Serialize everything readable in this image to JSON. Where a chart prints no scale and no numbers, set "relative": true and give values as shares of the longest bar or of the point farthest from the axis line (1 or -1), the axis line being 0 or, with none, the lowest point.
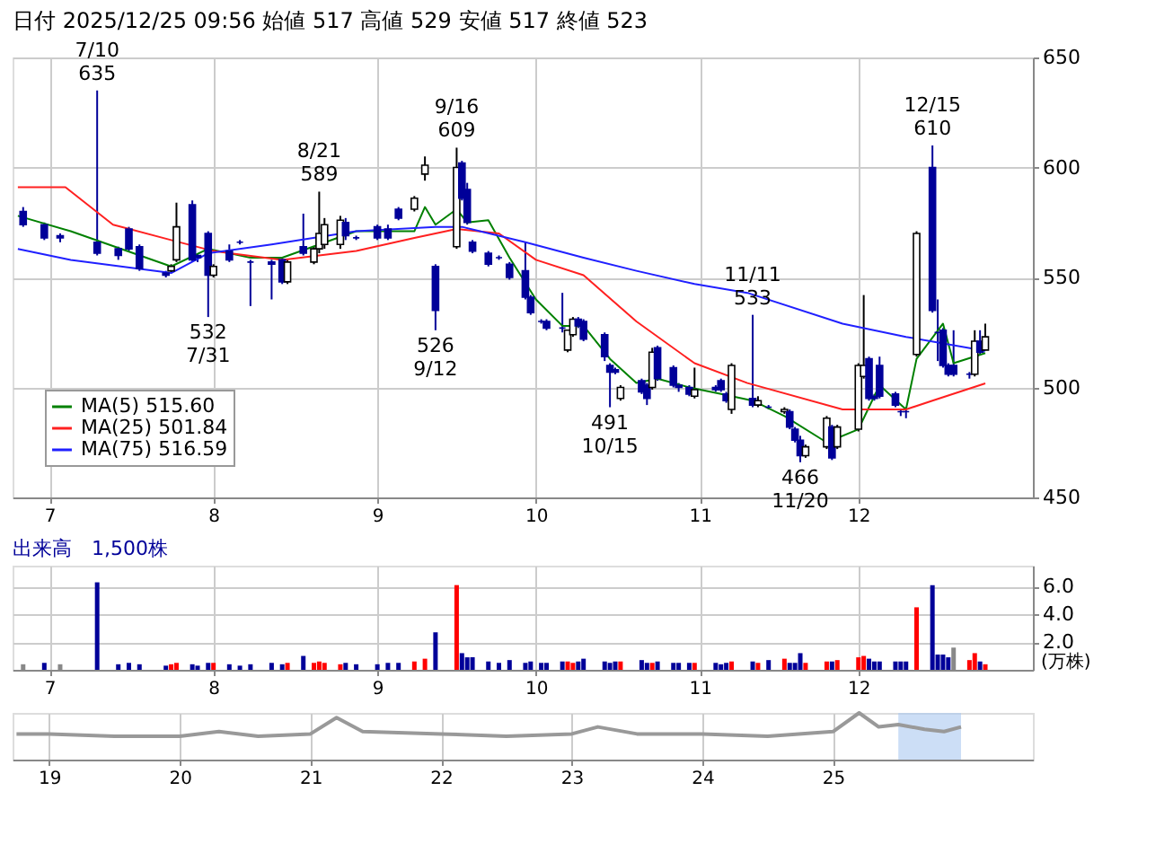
{
  "chart_data": [
    {
      "type": "candlestick",
      "title": "日付 2025/12/25 09:56 始値 517 高値 529 安値 517 終値 523",
      "color": "#000000",
      "x": [
        "2025-06-26",
        "2025-06-30",
        "2025-07-03",
        "2025-07-10",
        "2025-07-14",
        "2025-07-16",
        "2025-07-18",
        "2025-07-23",
        "2025-07-24",
        "2025-07-25",
        "2025-07-28",
        "2025-07-29",
        "2025-07-31",
        "2025-08-01",
        "2025-08-04",
        "2025-08-06",
        "2025-08-08",
        "2025-08-12",
        "2025-08-14",
        "2025-08-15",
        "2025-08-18",
        "2025-08-20",
        "2025-08-21",
        "2025-08-22",
        "2025-08-25",
        "2025-08-26",
        "2025-08-28",
        "2025-09-01",
        "2025-09-03",
        "2025-09-05",
        "2025-09-08",
        "2025-09-10",
        "2025-09-12",
        "2025-09-16",
        "2025-09-17",
        "2025-09-18",
        "2025-09-19",
        "2025-09-22",
        "2025-09-24",
        "2025-09-26",
        "2025-09-29",
        "2025-09-30",
        "2025-10-02",
        "2025-10-03",
        "2025-10-06",
        "2025-10-07",
        "2025-10-08",
        "2025-10-09",
        "2025-10-10",
        "2025-10-14",
        "2025-10-15",
        "2025-10-16",
        "2025-10-17",
        "2025-10-21",
        "2025-10-22",
        "2025-10-23",
        "2025-10-24",
        "2025-10-27",
        "2025-10-28",
        "2025-10-30",
        "2025-10-31",
        "2025-11-04",
        "2025-11-05",
        "2025-11-06",
        "2025-11-07",
        "2025-11-11",
        "2025-11-12",
        "2025-11-14",
        "2025-11-17",
        "2025-11-18",
        "2025-11-19",
        "2025-11-20",
        "2025-11-21",
        "2025-11-25",
        "2025-11-26",
        "2025-11-27",
        "2025-12-01",
        "2025-12-02",
        "2025-12-03",
        "2025-12-04",
        "2025-12-05",
        "2025-12-08",
        "2025-12-09",
        "2025-12-10",
        "2025-12-12",
        "2025-12-15",
        "2025-12-16",
        "2025-12-17",
        "2025-12-18",
        "2025-12-19",
        "2025-12-22",
        "2025-12-23",
        "2025-12-24",
        "2025-12-25"
      ],
      "ohlc": [
        [
          580,
          582,
          573,
          574
        ],
        [
          574,
          575,
          567,
          568
        ],
        [
          569,
          570,
          566,
          568
        ],
        [
          566,
          635,
          560,
          561
        ],
        [
          563,
          564,
          558,
          560
        ],
        [
          572,
          573,
          562,
          563
        ],
        [
          564,
          565,
          553,
          554
        ],
        [
          552,
          553,
          550,
          551
        ],
        [
          553,
          556,
          552,
          555
        ],
        [
          558,
          584,
          557,
          573
        ],
        [
          583,
          585,
          557,
          558
        ],
        [
          560,
          561,
          557,
          559
        ],
        [
          570,
          571,
          532,
          551
        ],
        [
          551,
          556,
          550,
          555
        ],
        [
          562,
          565,
          557,
          558
        ],
        [
          566,
          567,
          565,
          566
        ],
        [
          557,
          558,
          537,
          557
        ],
        [
          557,
          558,
          540,
          556
        ],
        [
          558,
          559,
          547,
          548
        ],
        [
          548,
          558,
          547,
          557
        ],
        [
          564,
          579,
          560,
          561
        ],
        [
          557,
          564,
          556,
          563
        ],
        [
          563,
          589,
          561,
          570
        ],
        [
          565,
          577,
          563,
          574
        ],
        [
          565,
          578,
          563,
          576
        ],
        [
          575,
          577,
          567,
          569
        ],
        [
          568,
          569,
          567,
          568
        ],
        [
          573,
          574,
          567,
          568
        ],
        [
          572,
          574,
          567,
          568
        ],
        [
          581,
          582,
          576,
          577
        ],
        [
          581,
          587,
          580,
          586
        ],
        [
          597,
          605,
          594,
          601
        ],
        [
          555,
          556,
          526,
          535
        ],
        [
          564,
          609,
          563,
          600
        ],
        [
          602,
          603,
          585,
          586
        ],
        [
          590,
          593,
          574,
          575
        ],
        [
          566,
          567,
          561,
          562
        ],
        [
          561,
          562,
          555,
          556
        ],
        [
          559,
          560,
          558,
          559
        ],
        [
          556,
          557,
          549,
          550
        ],
        [
          553,
          566,
          540,
          541
        ],
        [
          541,
          542,
          533,
          534
        ],
        [
          530,
          531,
          529,
          530
        ],
        [
          530,
          531,
          526,
          527
        ],
        [
          527,
          543,
          525,
          527
        ],
        [
          517,
          526,
          516,
          526
        ],
        [
          524,
          532,
          523,
          531
        ],
        [
          531,
          532,
          527,
          528
        ],
        [
          530,
          531,
          521,
          522
        ],
        [
          524,
          525,
          512,
          514
        ],
        [
          510,
          511,
          491,
          507
        ],
        [
          508,
          509,
          506,
          507
        ],
        [
          495,
          501,
          494,
          500
        ],
        [
          503,
          504,
          497,
          498
        ],
        [
          501,
          502,
          492,
          495
        ],
        [
          500,
          518,
          499,
          516
        ],
        [
          518,
          519,
          503,
          504
        ],
        [
          509,
          510,
          500,
          501
        ],
        [
          501,
          502,
          498,
          500
        ],
        [
          500,
          501,
          496,
          497
        ],
        [
          496,
          509,
          495,
          499
        ],
        [
          500,
          501,
          498,
          499
        ],
        [
          503,
          504,
          498,
          499
        ],
        [
          497,
          498,
          493,
          494
        ],
        [
          490,
          511,
          488,
          510
        ],
        [
          495,
          533,
          491,
          492
        ],
        [
          492,
          496,
          491,
          494
        ],
        [
          491,
          492,
          490,
          491
        ],
        [
          489,
          491,
          488,
          490
        ],
        [
          489,
          490,
          481,
          482
        ],
        [
          481,
          482,
          475,
          476
        ],
        [
          476,
          478,
          466,
          469
        ],
        [
          469,
          474,
          468,
          473
        ],
        [
          473,
          487,
          472,
          486
        ],
        [
          482,
          483,
          467,
          468
        ],
        [
          473,
          483,
          472,
          482
        ],
        [
          481,
          511,
          480,
          510
        ],
        [
          505,
          542,
          504,
          510
        ],
        [
          513,
          514,
          494,
          495
        ],
        [
          496,
          497,
          494,
          495
        ],
        [
          510,
          514,
          495,
          496
        ],
        [
          497,
          498,
          491,
          492
        ],
        [
          489,
          490,
          487,
          489
        ],
        [
          489,
          491,
          486,
          489
        ],
        [
          515,
          571,
          514,
          570
        ],
        [
          600,
          610,
          534,
          535
        ],
        [
          525,
          540,
          512,
          525
        ],
        [
          526,
          527,
          509,
          510
        ],
        [
          510,
          511,
          505,
          506
        ],
        [
          510,
          526,
          505,
          506
        ],
        [
          506,
          507,
          504,
          506
        ],
        [
          506,
          526,
          505,
          521
        ],
        [
          521,
          526,
          515,
          516
        ],
        [
          517,
          529,
          517,
          523
        ]
      ],
      "colors": [
        "#000099",
        "#000099",
        "#000099",
        "#000099",
        "#000099",
        "#000099",
        "#000099",
        "#000099",
        "#ffffff",
        "#ffffff",
        "#000099",
        "#000099",
        "#000099",
        "#ffffff",
        "#000099",
        "#000099",
        "#000099",
        "#000099",
        "#000099",
        "#ffffff",
        "#000099",
        "#ffffff",
        "#ffffff",
        "#ffffff",
        "#ffffff",
        "#000099",
        "#000099",
        "#000099",
        "#000099",
        "#000099",
        "#ffffff",
        "#ffffff",
        "#000099",
        "#ffffff",
        "#000099",
        "#000099",
        "#000099",
        "#000099",
        "#000099",
        "#000099",
        "#000099",
        "#000099",
        "#000099",
        "#000099",
        "#000099",
        "#ffffff",
        "#ffffff",
        "#000099",
        "#000099",
        "#000099",
        "#000099",
        "#000099",
        "#ffffff",
        "#000099",
        "#000099",
        "#ffffff",
        "#000099",
        "#000099",
        "#000099",
        "#000099",
        "#ffffff",
        "#000099",
        "#000099",
        "#000099",
        "#ffffff",
        "#000099",
        "#ffffff",
        "#000099",
        "#ffffff",
        "#000099",
        "#000099",
        "#000099",
        "#ffffff",
        "#ffffff",
        "#000099",
        "#ffffff",
        "#ffffff",
        "#ffffff",
        "#000099",
        "#000099",
        "#000099",
        "#000099",
        "#000099",
        "#000099",
        "#ffffff",
        "#000099",
        "#000099",
        "#000099",
        "#000099",
        "#000099",
        "#000099",
        "#ffffff",
        "#000099",
        "#ffffff"
      ],
      "series": [
        {
          "name": "MA(5) 515.60",
          "type": "line",
          "color": "#008000",
          "x": [
            "2025-06-25",
            "2025-07-05",
            "2025-07-24",
            "2025-07-31",
            "2025-08-08",
            "2025-08-14",
            "2025-08-21",
            "2025-08-28",
            "2025-09-01",
            "2025-09-08",
            "2025-09-10",
            "2025-09-12",
            "2025-09-16",
            "2025-09-18",
            "2025-09-22",
            "2025-09-26",
            "2025-10-01",
            "2025-10-06",
            "2025-10-10",
            "2025-10-15",
            "2025-10-20",
            "2025-10-24",
            "2025-10-30",
            "2025-11-05",
            "2025-11-11",
            "2025-11-17",
            "2025-11-25",
            "2025-12-01",
            "2025-12-05",
            "2025-12-10",
            "2025-12-12",
            "2025-12-17",
            "2025-12-19",
            "2025-12-25"
          ],
          "values": [
            578,
            571,
            555,
            563,
            559,
            559,
            565,
            571,
            571,
            571,
            582,
            574,
            581,
            575,
            576,
            559,
            540,
            528,
            528,
            513,
            502,
            504,
            500,
            497,
            494,
            487,
            475,
            481,
            501,
            490,
            513,
            529,
            511,
            515.6
          ]
        },
        {
          "name": "MA(25) 501.84",
          "type": "line",
          "color": "#ff2020",
          "x": [
            "2025-06-25",
            "2025-07-04",
            "2025-07-13",
            "2025-07-24",
            "2025-08-01",
            "2025-08-14",
            "2025-08-28",
            "2025-09-08",
            "2025-09-16",
            "2025-09-24",
            "2025-10-01",
            "2025-10-10",
            "2025-10-20",
            "2025-10-31",
            "2025-11-10",
            "2025-11-28",
            "2025-12-10",
            "2025-12-15",
            "2025-12-25"
          ],
          "values": [
            591,
            591,
            574,
            567,
            562,
            558,
            562,
            568,
            572,
            570,
            558,
            551,
            530,
            511,
            502,
            490,
            490,
            494,
            501.84
          ]
        },
        {
          "name": "MA(75) 516.59",
          "type": "line",
          "color": "#2020ff",
          "x": [
            "2025-06-25",
            "2025-07-05",
            "2025-07-24",
            "2025-07-31",
            "2025-08-12",
            "2025-08-28",
            "2025-09-12",
            "2025-09-17",
            "2025-09-29",
            "2025-10-10",
            "2025-10-20",
            "2025-10-31",
            "2025-11-10",
            "2025-11-28",
            "2025-12-10",
            "2025-12-25"
          ],
          "values": [
            563,
            558,
            552,
            561,
            565,
            571,
            573,
            573,
            566,
            559,
            553,
            547,
            543,
            529,
            523,
            516.59
          ]
        }
      ],
      "annotations": [
        {
          "text": "7/10\n635",
          "x": "2025-07-10",
          "y": 635
        },
        {
          "text": "532\n7/31",
          "x": "2025-07-31",
          "y": 532
        },
        {
          "text": "8/21\n589",
          "x": "2025-08-21",
          "y": 589
        },
        {
          "text": "9/16\n609",
          "x": "2025-09-16",
          "y": 609
        },
        {
          "text": "526\n9/12",
          "x": "2025-09-12",
          "y": 526
        },
        {
          "text": "491\n10/15",
          "x": "2025-10-15",
          "y": 491
        },
        {
          "text": "11/11\n533",
          "x": "2025-11-11",
          "y": 533
        },
        {
          "text": "466\n11/20",
          "x": "2025-11-20",
          "y": 466
        },
        {
          "text": "12/15\n610",
          "x": "2025-12-15",
          "y": 610
        }
      ],
      "xlim": [
        "2025-06-24",
        "2026-01-03"
      ],
      "xticks": [
        {
          "value": "2025-07-01",
          "label": "7"
        },
        {
          "value": "2025-08-01",
          "label": "8"
        },
        {
          "value": "2025-09-01",
          "label": "9"
        },
        {
          "value": "2025-10-01",
          "label": "10"
        },
        {
          "value": "2025-11-01",
          "label": "11"
        },
        {
          "value": "2025-12-01",
          "label": "12"
        }
      ],
      "ylim": [
        450,
        650
      ],
      "yticks": [
        450,
        500,
        550,
        600,
        650
      ],
      "grid": true,
      "legend": "bottom left"
    },
    {
      "type": "bar",
      "title": "出来高　1,500株",
      "ylabel": "(万株)",
      "x": [
        "2025-06-26",
        "2025-06-30",
        "2025-07-03",
        "2025-07-10",
        "2025-07-14",
        "2025-07-16",
        "2025-07-18",
        "2025-07-23",
        "2025-07-24",
        "2025-07-25",
        "2025-07-28",
        "2025-07-29",
        "2025-07-31",
        "2025-08-01",
        "2025-08-04",
        "2025-08-06",
        "2025-08-08",
        "2025-08-12",
        "2025-08-14",
        "2025-08-15",
        "2025-08-18",
        "2025-08-20",
        "2025-08-21",
        "2025-08-22",
        "2025-08-25",
        "2025-08-26",
        "2025-08-28",
        "2025-09-01",
        "2025-09-03",
        "2025-09-05",
        "2025-09-08",
        "2025-09-10",
        "2025-09-12",
        "2025-09-16",
        "2025-09-17",
        "2025-09-18",
        "2025-09-19",
        "2025-09-22",
        "2025-09-24",
        "2025-09-26",
        "2025-09-29",
        "2025-09-30",
        "2025-10-02",
        "2025-10-03",
        "2025-10-06",
        "2025-10-07",
        "2025-10-08",
        "2025-10-09",
        "2025-10-10",
        "2025-10-14",
        "2025-10-15",
        "2025-10-16",
        "2025-10-17",
        "2025-10-21",
        "2025-10-22",
        "2025-10-23",
        "2025-10-24",
        "2025-10-27",
        "2025-10-28",
        "2025-10-30",
        "2025-10-31",
        "2025-11-04",
        "2025-11-05",
        "2025-11-06",
        "2025-11-07",
        "2025-11-11",
        "2025-11-12",
        "2025-11-14",
        "2025-11-17",
        "2025-11-18",
        "2025-11-19",
        "2025-11-20",
        "2025-11-21",
        "2025-11-25",
        "2025-11-26",
        "2025-11-27",
        "2025-12-01",
        "2025-12-02",
        "2025-12-03",
        "2025-12-04",
        "2025-12-05",
        "2025-12-08",
        "2025-12-09",
        "2025-12-10",
        "2025-12-12",
        "2025-12-15",
        "2025-12-16",
        "2025-12-17",
        "2025-12-18",
        "2025-12-19",
        "2025-12-22",
        "2025-12-23",
        "2025-12-24",
        "2025-12-25"
      ],
      "values": [
        0.4,
        0.5,
        0.4,
        6.3,
        0.4,
        0.5,
        0.4,
        0.3,
        0.4,
        0.5,
        0.4,
        0.3,
        0.5,
        0.5,
        0.4,
        0.3,
        0.4,
        0.5,
        0.4,
        0.5,
        1.0,
        0.5,
        0.6,
        0.5,
        0.4,
        0.5,
        0.4,
        0.4,
        0.5,
        0.5,
        0.6,
        0.8,
        2.7,
        6.1,
        1.2,
        0.9,
        0.9,
        0.6,
        0.5,
        0.7,
        0.5,
        0.6,
        0.5,
        0.5,
        0.6,
        0.6,
        0.5,
        0.6,
        0.8,
        0.6,
        0.5,
        0.6,
        0.6,
        0.7,
        0.5,
        0.5,
        0.6,
        0.5,
        0.5,
        0.5,
        0.5,
        0.5,
        0.4,
        0.5,
        0.6,
        0.6,
        0.5,
        0.7,
        0.8,
        0.5,
        0.5,
        1.2,
        0.5,
        0.6,
        0.6,
        0.7,
        0.9,
        1.0,
        0.8,
        0.6,
        0.6,
        0.6,
        0.6,
        0.6,
        4.5,
        6.1,
        1.1,
        1.1,
        0.9,
        1.6,
        0.7,
        1.2,
        0.6,
        0.4
      ],
      "colors": [
        "#888888",
        "#000099",
        "#888888",
        "#000099",
        "#000099",
        "#000099",
        "#000099",
        "#000099",
        "#ff0000",
        "#ff0000",
        "#000099",
        "#000099",
        "#000099",
        "#ff0000",
        "#000099",
        "#000099",
        "#000099",
        "#000099",
        "#000099",
        "#ff0000",
        "#000099",
        "#ff0000",
        "#ff0000",
        "#ff0000",
        "#ff0000",
        "#000099",
        "#000099",
        "#000099",
        "#000099",
        "#000099",
        "#ff0000",
        "#ff0000",
        "#000099",
        "#ff0000",
        "#000099",
        "#000099",
        "#000099",
        "#000099",
        "#000099",
        "#000099",
        "#000099",
        "#000099",
        "#000099",
        "#000099",
        "#000099",
        "#ff0000",
        "#ff0000",
        "#000099",
        "#000099",
        "#000099",
        "#000099",
        "#000099",
        "#ff0000",
        "#000099",
        "#000099",
        "#ff0000",
        "#000099",
        "#000099",
        "#000099",
        "#000099",
        "#ff0000",
        "#000099",
        "#000099",
        "#000099",
        "#ff0000",
        "#000099",
        "#ff0000",
        "#000099",
        "#ff0000",
        "#000099",
        "#000099",
        "#000099",
        "#ff0000",
        "#ff0000",
        "#000099",
        "#ff0000",
        "#ff0000",
        "#ff0000",
        "#000099",
        "#000099",
        "#000099",
        "#000099",
        "#000099",
        "#000099",
        "#ff0000",
        "#000099",
        "#000099",
        "#000099",
        "#000099",
        "#888888",
        "#ff0000",
        "#ff0000",
        "#000099",
        "#ff0000"
      ],
      "xlim": [
        "2025-06-24",
        "2026-01-03"
      ],
      "xticks": [
        {
          "value": "2025-07-01",
          "label": "7"
        },
        {
          "value": "2025-08-01",
          "label": "8"
        },
        {
          "value": "2025-09-01",
          "label": "9"
        },
        {
          "value": "2025-10-01",
          "label": "10"
        },
        {
          "value": "2025-11-01",
          "label": "11"
        },
        {
          "value": "2025-12-01",
          "label": "12"
        }
      ],
      "ylim": [
        0,
        7.5
      ],
      "yticks": [
        {
          "value": 2,
          "label": "2.0"
        },
        {
          "value": 4,
          "label": "4.0"
        },
        {
          "value": 6,
          "label": "6.0"
        }
      ],
      "grid": true
    },
    {
      "type": "line",
      "relative": true,
      "color": "#999999",
      "tick_labels": "x",
      "x": [
        2018.75,
        2019.0,
        2019.5,
        2020.0,
        2020.3,
        2020.6,
        2021.0,
        2021.2,
        2021.4,
        2022.0,
        2022.5,
        2023.0,
        2023.2,
        2023.5,
        2024.0,
        2024.5,
        2025.0,
        2025.2,
        2025.35,
        2025.5,
        2025.7,
        2025.85,
        2025.98
      ],
      "values": [
        0.55,
        0.55,
        0.5,
        0.5,
        0.6,
        0.5,
        0.55,
        0.9,
        0.6,
        0.55,
        0.5,
        0.55,
        0.7,
        0.55,
        0.55,
        0.5,
        0.6,
        1.0,
        0.7,
        0.75,
        0.65,
        0.6,
        0.7
      ],
      "xlim": [
        2018.72,
        2026.53
      ],
      "xticks": [
        {
          "value": 2019,
          "label": "19"
        },
        {
          "value": 2020,
          "label": "20"
        },
        {
          "value": 2021,
          "label": "21"
        },
        {
          "value": 2022,
          "label": "22"
        },
        {
          "value": 2023,
          "label": "23"
        },
        {
          "value": 2024,
          "label": "24"
        },
        {
          "value": 2025,
          "label": "25"
        }
      ],
      "bands": [
        {
          "axis": "x",
          "from": 2025.5,
          "to": 2025.98,
          "color": "#aac8f0"
        }
      ],
      "grid": "x"
    }
  ]
}
